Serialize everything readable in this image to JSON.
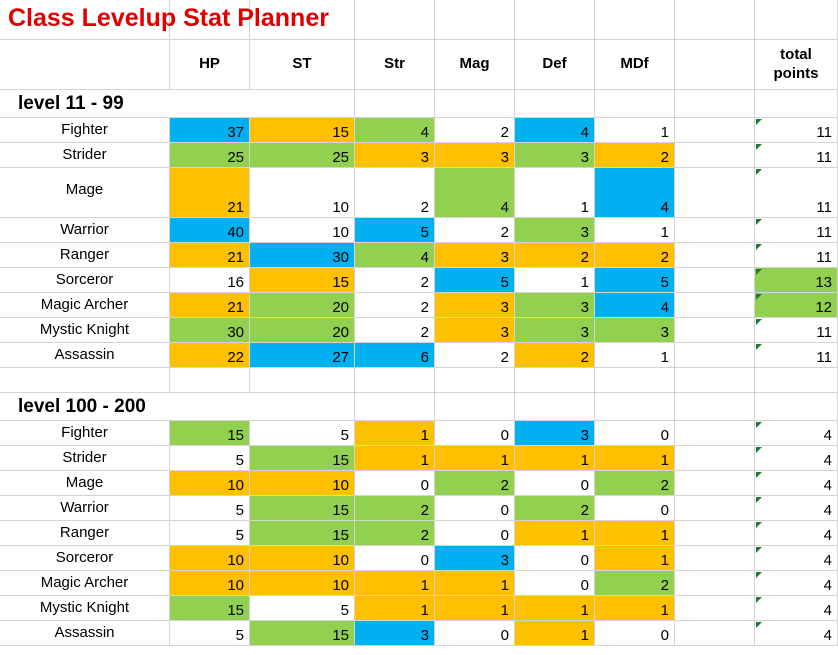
{
  "title": "Class Levelup Stat Planner",
  "colors": {
    "orange": "#ffc000",
    "green": "#92d050",
    "blue": "#00b0f0",
    "white": "#ffffff",
    "title": "#e00000"
  },
  "headers": [
    "HP",
    "ST",
    "Str",
    "Mag",
    "Def",
    "MDf"
  ],
  "total_header": "total\npoints",
  "sections": [
    {
      "label": "level 11 - 99",
      "rows": [
        {
          "name": "Fighter",
          "values": [
            37,
            15,
            4,
            2,
            4,
            1
          ],
          "colors": [
            "blue",
            "orange",
            "green",
            "white",
            "blue",
            "white"
          ],
          "total": 11,
          "total_color": "white"
        },
        {
          "name": "Strider",
          "values": [
            25,
            25,
            3,
            3,
            3,
            2
          ],
          "colors": [
            "green",
            "green",
            "orange",
            "orange",
            "green",
            "orange"
          ],
          "total": 11,
          "total_color": "white"
        },
        {
          "name": "Mage",
          "values": [
            21,
            10,
            2,
            4,
            1,
            4
          ],
          "colors": [
            "orange",
            "white",
            "white",
            "green",
            "white",
            "blue"
          ],
          "total": 11,
          "total_color": "white"
        },
        {
          "name": "Warrior",
          "values": [
            40,
            10,
            5,
            2,
            3,
            1
          ],
          "colors": [
            "blue",
            "white",
            "blue",
            "white",
            "green",
            "white"
          ],
          "total": 11,
          "total_color": "white"
        },
        {
          "name": "Ranger",
          "values": [
            21,
            30,
            4,
            3,
            2,
            2
          ],
          "colors": [
            "orange",
            "blue",
            "green",
            "orange",
            "orange",
            "orange"
          ],
          "total": 11,
          "total_color": "white"
        },
        {
          "name": "Sorceror",
          "values": [
            16,
            15,
            2,
            5,
            1,
            5
          ],
          "colors": [
            "white",
            "orange",
            "white",
            "blue",
            "white",
            "blue"
          ],
          "total": 13,
          "total_color": "green"
        },
        {
          "name": "Magic Archer",
          "values": [
            21,
            20,
            2,
            3,
            3,
            4
          ],
          "colors": [
            "orange",
            "green",
            "white",
            "orange",
            "green",
            "blue"
          ],
          "total": 12,
          "total_color": "green"
        },
        {
          "name": "Mystic Knight",
          "values": [
            30,
            20,
            2,
            3,
            3,
            3
          ],
          "colors": [
            "green",
            "green",
            "white",
            "orange",
            "green",
            "green"
          ],
          "total": 11,
          "total_color": "white"
        },
        {
          "name": "Assassin",
          "values": [
            22,
            27,
            6,
            2,
            2,
            1
          ],
          "colors": [
            "orange",
            "blue",
            "blue",
            "white",
            "orange",
            "white"
          ],
          "total": 11,
          "total_color": "white"
        }
      ]
    },
    {
      "label": "level 100 - 200",
      "rows": [
        {
          "name": "Fighter",
          "values": [
            15,
            5,
            1,
            0,
            3,
            0
          ],
          "colors": [
            "green",
            "white",
            "orange",
            "white",
            "blue",
            "white"
          ],
          "total": 4,
          "total_color": "white"
        },
        {
          "name": "Strider",
          "values": [
            5,
            15,
            1,
            1,
            1,
            1
          ],
          "colors": [
            "white",
            "green",
            "orange",
            "orange",
            "orange",
            "orange"
          ],
          "total": 4,
          "total_color": "white"
        },
        {
          "name": "Mage",
          "values": [
            10,
            10,
            0,
            2,
            0,
            2
          ],
          "colors": [
            "orange",
            "orange",
            "white",
            "green",
            "white",
            "green"
          ],
          "total": 4,
          "total_color": "white"
        },
        {
          "name": "Warrior",
          "values": [
            5,
            15,
            2,
            0,
            2,
            0
          ],
          "colors": [
            "white",
            "green",
            "green",
            "white",
            "green",
            "white"
          ],
          "total": 4,
          "total_color": "white"
        },
        {
          "name": "Ranger",
          "values": [
            5,
            15,
            2,
            0,
            1,
            1
          ],
          "colors": [
            "white",
            "green",
            "green",
            "white",
            "orange",
            "orange"
          ],
          "total": 4,
          "total_color": "white"
        },
        {
          "name": "Sorceror",
          "values": [
            10,
            10,
            0,
            3,
            0,
            1
          ],
          "colors": [
            "orange",
            "orange",
            "white",
            "blue",
            "white",
            "orange"
          ],
          "total": 4,
          "total_color": "white"
        },
        {
          "name": "Magic Archer",
          "values": [
            10,
            10,
            1,
            1,
            0,
            2
          ],
          "colors": [
            "orange",
            "orange",
            "orange",
            "orange",
            "white",
            "green"
          ],
          "total": 4,
          "total_color": "white"
        },
        {
          "name": "Mystic Knight",
          "values": [
            15,
            5,
            1,
            1,
            1,
            1
          ],
          "colors": [
            "green",
            "white",
            "orange",
            "orange",
            "orange",
            "orange"
          ],
          "total": 4,
          "total_color": "white"
        },
        {
          "name": "Assassin",
          "values": [
            5,
            15,
            3,
            0,
            1,
            0
          ],
          "colors": [
            "white",
            "green",
            "blue",
            "white",
            "orange",
            "white"
          ],
          "total": 4,
          "total_color": "white"
        }
      ]
    }
  ]
}
